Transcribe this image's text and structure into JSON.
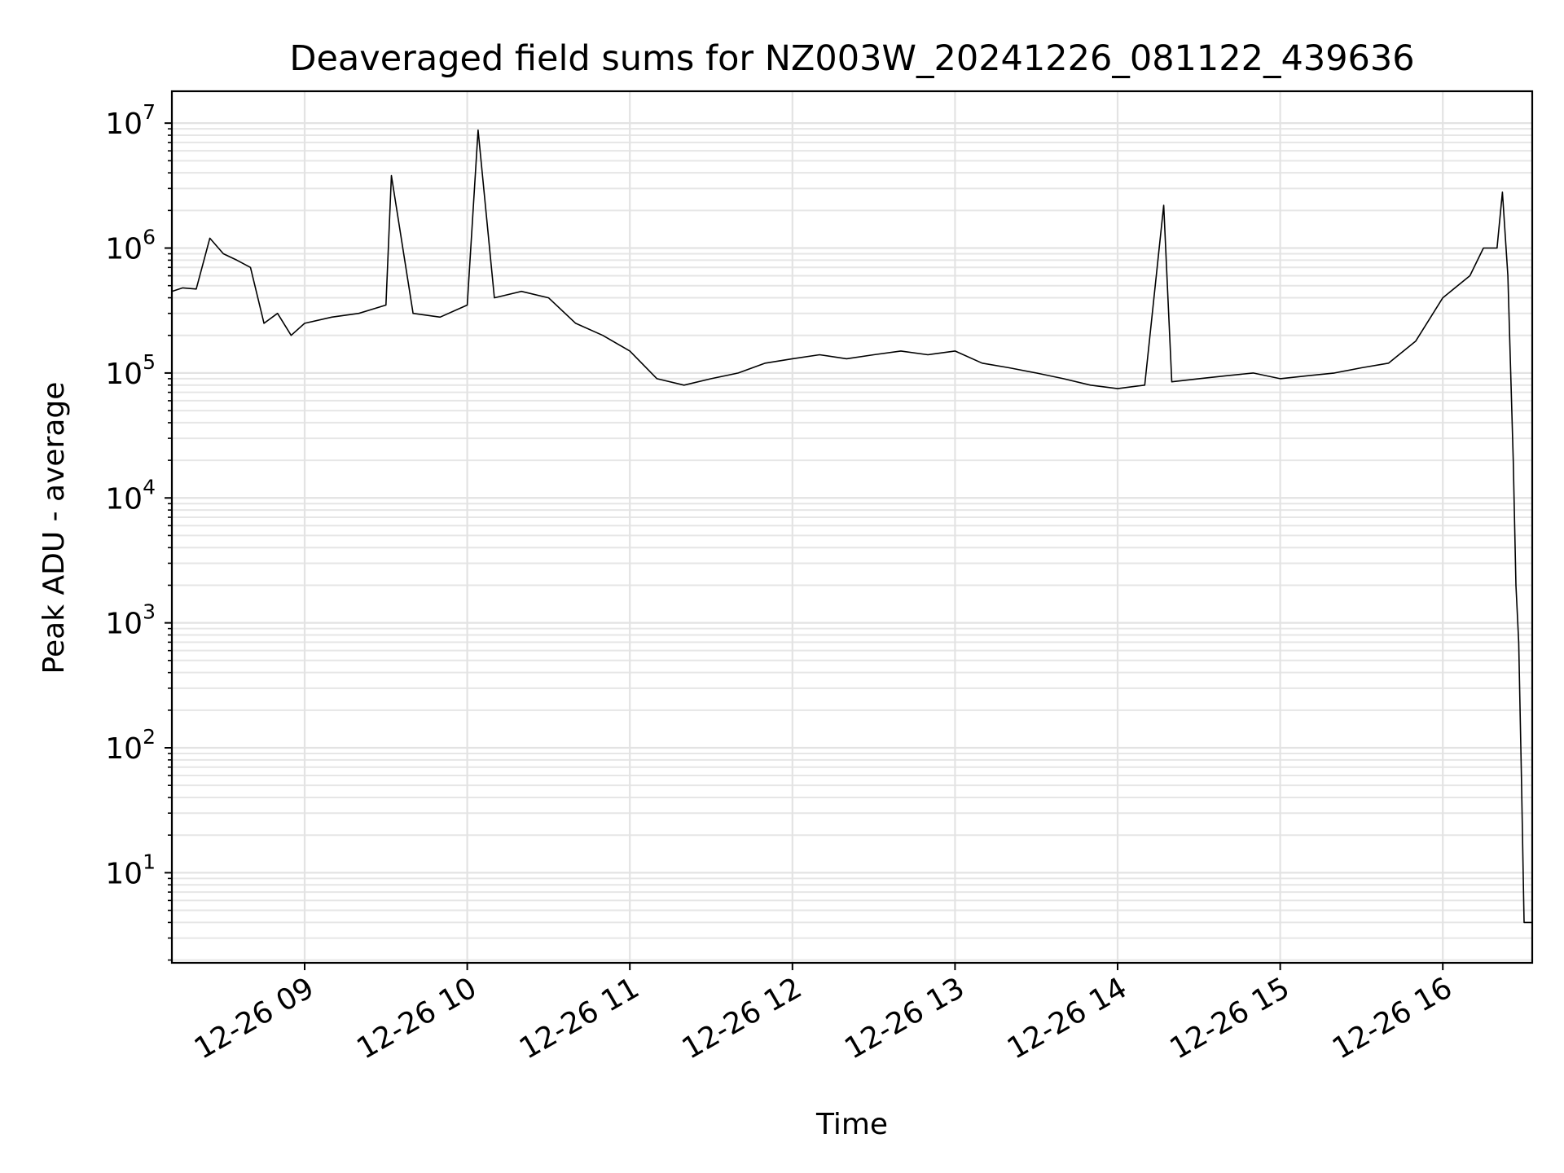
{
  "chart_data": {
    "type": "line",
    "title": "Deaveraged field sums for NZ003W_20241226_081122_439636",
    "xlabel": "Time",
    "ylabel": "Peak ADU - average",
    "y_scale": "log",
    "ylim": [
      1.9,
      18000000
    ],
    "xlim": [
      "12-26 08:11",
      "12-26 16:33"
    ],
    "grid": "major and minor, light gray",
    "legend": "none",
    "line_color": "#000000",
    "x_ticks": [
      "12-26 09",
      "12-26 10",
      "12-26 11",
      "12-26 12",
      "12-26 13",
      "12-26 14",
      "12-26 15",
      "12-26 16"
    ],
    "y_ticks": [
      {
        "base": "10",
        "exp": "1",
        "value": 10
      },
      {
        "base": "10",
        "exp": "2",
        "value": 100
      },
      {
        "base": "10",
        "exp": "3",
        "value": 1000
      },
      {
        "base": "10",
        "exp": "4",
        "value": 10000
      },
      {
        "base": "10",
        "exp": "5",
        "value": 100000
      },
      {
        "base": "10",
        "exp": "6",
        "value": 1000000
      },
      {
        "base": "10",
        "exp": "7",
        "value": 10000000
      }
    ],
    "series": [
      {
        "x": [
          "12-26 08:11",
          "12-26 08:15",
          "12-26 08:20",
          "12-26 08:25",
          "12-26 08:30",
          "12-26 08:35",
          "12-26 08:40",
          "12-26 08:45",
          "12-26 08:50",
          "12-26 08:55",
          "12-26 09:00",
          "12-26 09:10",
          "12-26 09:20",
          "12-26 09:30",
          "12-26 09:32",
          "12-26 09:40",
          "12-26 09:50",
          "12-26 10:00",
          "12-26 10:04",
          "12-26 10:10",
          "12-26 10:20",
          "12-26 10:30",
          "12-26 10:40",
          "12-26 10:50",
          "12-26 11:00",
          "12-26 11:10",
          "12-26 11:20",
          "12-26 11:30",
          "12-26 11:40",
          "12-26 11:50",
          "12-26 12:00",
          "12-26 12:10",
          "12-26 12:20",
          "12-26 12:30",
          "12-26 12:40",
          "12-26 12:50",
          "12-26 13:00",
          "12-26 13:10",
          "12-26 13:20",
          "12-26 13:30",
          "12-26 13:40",
          "12-26 13:50",
          "12-26 14:00",
          "12-26 14:10",
          "12-26 14:17",
          "12-26 14:20",
          "12-26 14:30",
          "12-26 14:40",
          "12-26 14:50",
          "12-26 15:00",
          "12-26 15:10",
          "12-26 15:20",
          "12-26 15:30",
          "12-26 15:40",
          "12-26 15:50",
          "12-26 16:00",
          "12-26 16:10",
          "12-26 16:15",
          "12-26 16:20",
          "12-26 16:22",
          "12-26 16:24",
          "12-26 16:26",
          "12-26 16:27",
          "12-26 16:28",
          "12-26 16:29",
          "12-26 16:30",
          "12-26 16:33"
        ],
        "y": [
          450000,
          480000,
          470000,
          1200000,
          900000,
          800000,
          700000,
          250000,
          300000,
          200000,
          250000,
          280000,
          300000,
          350000,
          3800000,
          300000,
          280000,
          350000,
          8800000,
          400000,
          450000,
          400000,
          250000,
          200000,
          150000,
          90000,
          80000,
          90000,
          100000,
          120000,
          130000,
          140000,
          130000,
          140000,
          150000,
          140000,
          150000,
          120000,
          110000,
          100000,
          90000,
          80000,
          75000,
          80000,
          2200000,
          85000,
          90000,
          95000,
          100000,
          90000,
          95000,
          100000,
          110000,
          120000,
          180000,
          400000,
          600000,
          1000000,
          1000000,
          2800000,
          600000,
          20000,
          2000,
          700,
          60,
          4,
          4
        ]
      }
    ]
  }
}
